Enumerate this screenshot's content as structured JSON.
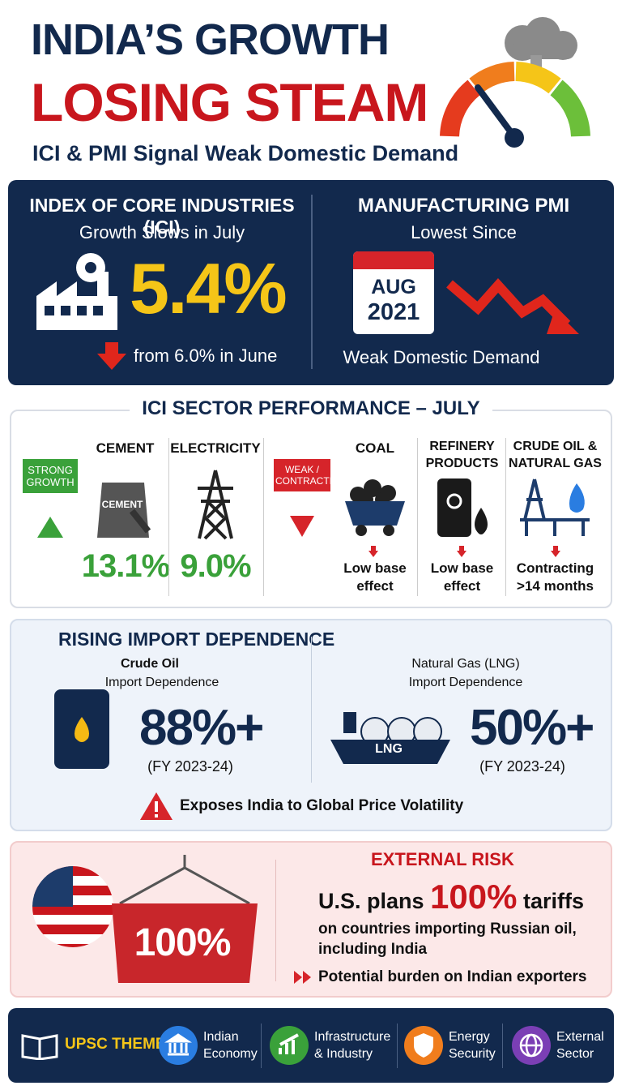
{
  "header": {
    "title_line1": "INDIA’S GROWTH",
    "title_line2": "LOSING STEAM",
    "subtitle": "ICI & PMI Signal Weak Domestic Demand"
  },
  "ici_panel": {
    "heading": "INDEX OF CORE INDUSTRIES (ICI)",
    "subheading": "Growth Slows in July",
    "value": "5.4%",
    "note": "from 6.0% in June"
  },
  "pmi_panel": {
    "heading": "MANUFACTURING PMI",
    "subheading": "Lowest Since",
    "month": "AUG",
    "year": "2021",
    "note": "Weak Domestic Demand"
  },
  "sectors": {
    "title": "ICI SECTOR PERFORMANCE – JULY",
    "strong_label": "STRONG GROWTH",
    "weak_label": "WEAK / CONTRACTING",
    "cement_bag_label": "CEMENT",
    "strong": [
      {
        "name": "CEMENT",
        "value": "13.1%"
      },
      {
        "name": "ELECTRICITY",
        "value": "9.0%"
      }
    ],
    "weak": [
      {
        "name": "COAL",
        "note": "Low base effect"
      },
      {
        "name": "REFINERY PRODUCTS",
        "note": "Low base effect"
      },
      {
        "name": "CRUDE OIL & NATURAL GAS",
        "note": "Contracting >14 months"
      }
    ]
  },
  "imports": {
    "title": "RISING IMPORT DEPENDENCE",
    "items": [
      {
        "name": "Crude Oil",
        "label": "Import Dependence",
        "value": "88%+",
        "period": "(FY 2023-24)"
      },
      {
        "name": "Natural Gas (LNG)",
        "label": "Import Dependence",
        "value": "50%+",
        "period": "(FY 2023-24)"
      }
    ],
    "ship_label": "LNG",
    "warning": "Exposes India to Global Price Volatility"
  },
  "external": {
    "container_label": "100%",
    "title": "EXTERNAL RISK",
    "headline_pre": "U.S. plans",
    "headline_value": "100%",
    "headline_post": "tariffs",
    "detail": "on countries importing Russian oil, including India",
    "bullet": "Potential burden on Indian exporters"
  },
  "footer": {
    "label": "UPSC THEME:",
    "themes": [
      "Indian Economy",
      "Infrastructure & Industry",
      "Energy Security",
      "External Sector"
    ]
  }
}
